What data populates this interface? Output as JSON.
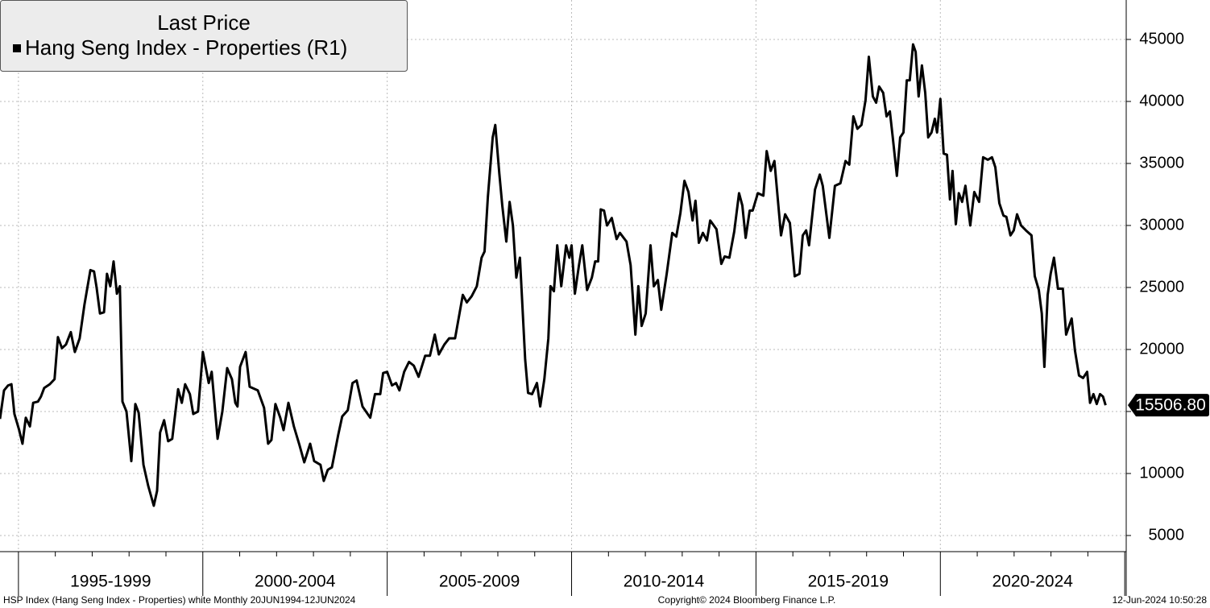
{
  "chart_data": {
    "type": "line",
    "legend_title": "Last Price",
    "series_name": "Hang Seng Index - Properties  (R1)",
    "color": "#000000",
    "last_price_label": "15506.80",
    "footer_left": "HSP Index (Hang Seng Index - Properties) white  Monthly 20JUN1994-12JUN2024",
    "footer_center": "Copyright© 2024 Bloomberg Finance L.P.",
    "footer_right": "12-Jun-2024 10:50:28",
    "xlim": [
      1994.5,
      2025.04
    ],
    "xticks": [
      1995,
      2000,
      2005,
      2010,
      2015,
      2020,
      2025
    ],
    "xminorticks": [
      1996,
      1997,
      1998,
      1999,
      2001,
      2002,
      2003,
      2004,
      2006,
      2007,
      2008,
      2009,
      2011,
      2012,
      2013,
      2014,
      2016,
      2017,
      2018,
      2019,
      2021,
      2022,
      2023,
      2024
    ],
    "xlabels": [
      {
        "value": 1997.5,
        "label": "1995-1999"
      },
      {
        "value": 2002.5,
        "label": "2000-2004"
      },
      {
        "value": 2007.5,
        "label": "2005-2009"
      },
      {
        "value": 2012.5,
        "label": "2010-2014"
      },
      {
        "value": 2017.5,
        "label": "2015-2019"
      },
      {
        "value": 2022.5,
        "label": "2020-2024"
      }
    ],
    "ylim": [
      3700,
      48180
    ],
    "yticks": [
      5000,
      10000,
      15000,
      20000,
      25000,
      30000,
      35000,
      40000,
      45000
    ],
    "grid": true,
    "x": [
      1994.5,
      1994.61,
      1994.72,
      1994.81,
      1994.89,
      1995.02,
      1995.11,
      1995.2,
      1995.31,
      1995.4,
      1995.53,
      1995.61,
      1995.7,
      1995.85,
      1995.98,
      1996.07,
      1996.18,
      1996.29,
      1996.42,
      1996.53,
      1996.66,
      1996.79,
      1996.95,
      1997.05,
      1997.12,
      1997.21,
      1997.32,
      1997.4,
      1997.49,
      1997.58,
      1997.67,
      1997.75,
      1997.82,
      1997.93,
      1998.06,
      1998.17,
      1998.26,
      1998.39,
      1998.52,
      1998.67,
      1998.76,
      1998.84,
      1998.95,
      1999.06,
      1999.17,
      1999.33,
      1999.43,
      1999.52,
      1999.65,
      1999.74,
      1999.87,
      2000.0,
      2000.16,
      2000.24,
      2000.4,
      2000.53,
      2000.66,
      2000.79,
      2000.88,
      2000.94,
      2001.01,
      2001.16,
      2001.27,
      2001.49,
      2001.66,
      2001.77,
      2001.86,
      2001.97,
      2002.1,
      2002.19,
      2002.32,
      2002.47,
      2002.62,
      2002.75,
      2002.91,
      2003.02,
      2003.19,
      2003.28,
      2003.39,
      2003.5,
      2003.67,
      2003.78,
      2003.93,
      2004.06,
      2004.17,
      2004.33,
      2004.54,
      2004.67,
      2004.81,
      2004.89,
      2005.0,
      2005.13,
      2005.24,
      2005.33,
      2005.46,
      2005.59,
      2005.72,
      2005.85,
      2006.03,
      2006.16,
      2006.29,
      2006.4,
      2006.55,
      2006.68,
      2006.84,
      2007.05,
      2007.16,
      2007.29,
      2007.43,
      2007.56,
      2007.64,
      2007.73,
      2007.86,
      2007.93,
      2008.04,
      2008.12,
      2008.23,
      2008.32,
      2008.41,
      2008.5,
      2008.6,
      2008.74,
      2008.82,
      2008.93,
      2009.06,
      2009.15,
      2009.26,
      2009.37,
      2009.43,
      2009.52,
      2009.61,
      2009.72,
      2009.85,
      2009.94,
      2010.0,
      2010.09,
      2010.2,
      2010.29,
      2010.42,
      2010.55,
      2010.64,
      2010.72,
      2010.79,
      2010.88,
      2010.96,
      2011.09,
      2011.22,
      2011.31,
      2011.49,
      2011.6,
      2011.73,
      2011.81,
      2011.9,
      2012.01,
      2012.14,
      2012.23,
      2012.34,
      2012.43,
      2012.58,
      2012.73,
      2012.84,
      2012.95,
      2013.06,
      2013.17,
      2013.28,
      2013.36,
      2013.45,
      2013.56,
      2013.67,
      2013.76,
      2013.93,
      2014.06,
      2014.15,
      2014.28,
      2014.41,
      2014.54,
      2014.63,
      2014.72,
      2014.83,
      2014.91,
      2015.05,
      2015.2,
      2015.29,
      2015.4,
      2015.5,
      2015.68,
      2015.79,
      2015.92,
      2016.05,
      2016.18,
      2016.27,
      2016.36,
      2016.44,
      2016.6,
      2016.73,
      2016.81,
      2016.99,
      2017.14,
      2017.29,
      2017.43,
      2017.53,
      2017.64,
      2017.75,
      2017.86,
      2017.97,
      2018.06,
      2018.17,
      2018.26,
      2018.34,
      2018.45,
      2018.54,
      2018.63,
      2018.71,
      2018.82,
      2018.91,
      2019.0,
      2019.09,
      2019.17,
      2019.26,
      2019.33,
      2019.41,
      2019.5,
      2019.59,
      2019.67,
      2019.76,
      2019.85,
      2019.91,
      2020.0,
      2020.09,
      2020.18,
      2020.26,
      2020.33,
      2020.42,
      2020.5,
      2020.59,
      2020.68,
      2020.81,
      2020.92,
      2021.05,
      2021.16,
      2021.29,
      2021.4,
      2021.49,
      2021.6,
      2021.71,
      2021.79,
      2021.9,
      2021.99,
      2022.08,
      2022.19,
      2022.32,
      2022.47,
      2022.56,
      2022.67,
      2022.75,
      2022.82,
      2022.91,
      2022.99,
      2023.08,
      2023.19,
      2023.32,
      2023.41,
      2023.56,
      2023.65,
      2023.76,
      2023.87,
      2023.98,
      2024.06,
      2024.15,
      2024.24,
      2024.33,
      2024.41,
      2024.48
    ],
    "series": [
      {
        "name": "Hang Seng Index - Properties",
        "values": [
          14400,
          16700,
          17100,
          17200,
          14800,
          13500,
          12400,
          14500,
          13800,
          15700,
          15800,
          16200,
          16900,
          17200,
          17600,
          21000,
          20100,
          20400,
          21400,
          19800,
          20900,
          23600,
          26400,
          26300,
          25000,
          22900,
          23000,
          26100,
          25100,
          27100,
          24500,
          25100,
          15800,
          15000,
          11000,
          15600,
          14900,
          10700,
          9000,
          7400,
          8600,
          13300,
          14300,
          12600,
          12800,
          16800,
          15700,
          17200,
          16400,
          14800,
          15000,
          19800,
          17300,
          18200,
          12800,
          15000,
          18500,
          17600,
          15700,
          15400,
          18600,
          19800,
          17000,
          16700,
          15300,
          12400,
          12700,
          15600,
          14500,
          13500,
          15700,
          13800,
          12300,
          10900,
          12400,
          11000,
          10700,
          9400,
          10300,
          10500,
          13100,
          14600,
          15100,
          17300,
          17500,
          15400,
          14500,
          16400,
          16400,
          18100,
          18200,
          17100,
          17300,
          16700,
          18200,
          19000,
          18700,
          17800,
          19500,
          19500,
          21200,
          19600,
          20400,
          20900,
          20900,
          24400,
          23800,
          24300,
          25100,
          27400,
          27900,
          32300,
          37100,
          38100,
          34200,
          31600,
          28700,
          31900,
          30000,
          25800,
          27400,
          19200,
          16500,
          16400,
          17300,
          15400,
          17600,
          20900,
          25100,
          24700,
          28400,
          25100,
          28400,
          27400,
          28400,
          24500,
          26800,
          28400,
          24800,
          25800,
          27100,
          27100,
          31300,
          31200,
          30000,
          30600,
          28900,
          29400,
          28700,
          26800,
          21200,
          25100,
          21900,
          22900,
          28400,
          25100,
          25600,
          23200,
          26100,
          29400,
          29100,
          31000,
          33600,
          32700,
          30400,
          32000,
          28600,
          29400,
          28800,
          30400,
          29700,
          26900,
          27500,
          27400,
          29500,
          32600,
          31600,
          29000,
          31200,
          31200,
          32600,
          32400,
          36000,
          34400,
          35200,
          29200,
          30900,
          30200,
          25900,
          26100,
          29200,
          29600,
          28400,
          32900,
          34100,
          33200,
          29000,
          33200,
          33400,
          35200,
          34900,
          38800,
          37800,
          38100,
          40100,
          43600,
          40400,
          39900,
          41200,
          40700,
          38800,
          39200,
          37100,
          34000,
          37100,
          37500,
          41700,
          41700,
          44600,
          44000,
          40400,
          42900,
          40700,
          37100,
          37500,
          38600,
          37500,
          40200,
          35800,
          35700,
          32100,
          34400,
          30100,
          32600,
          31900,
          33200,
          30000,
          32700,
          31900,
          35500,
          35300,
          35500,
          34700,
          31800,
          30800,
          30700,
          29200,
          29600,
          30900,
          30000,
          29600,
          29200,
          25900,
          24800,
          22900,
          18600,
          24400,
          26100,
          27400,
          24900,
          24900,
          21200,
          22500,
          19900,
          17900,
          17700,
          18200,
          15700,
          16400,
          15600,
          16400,
          16200,
          15506.8
        ]
      }
    ]
  }
}
